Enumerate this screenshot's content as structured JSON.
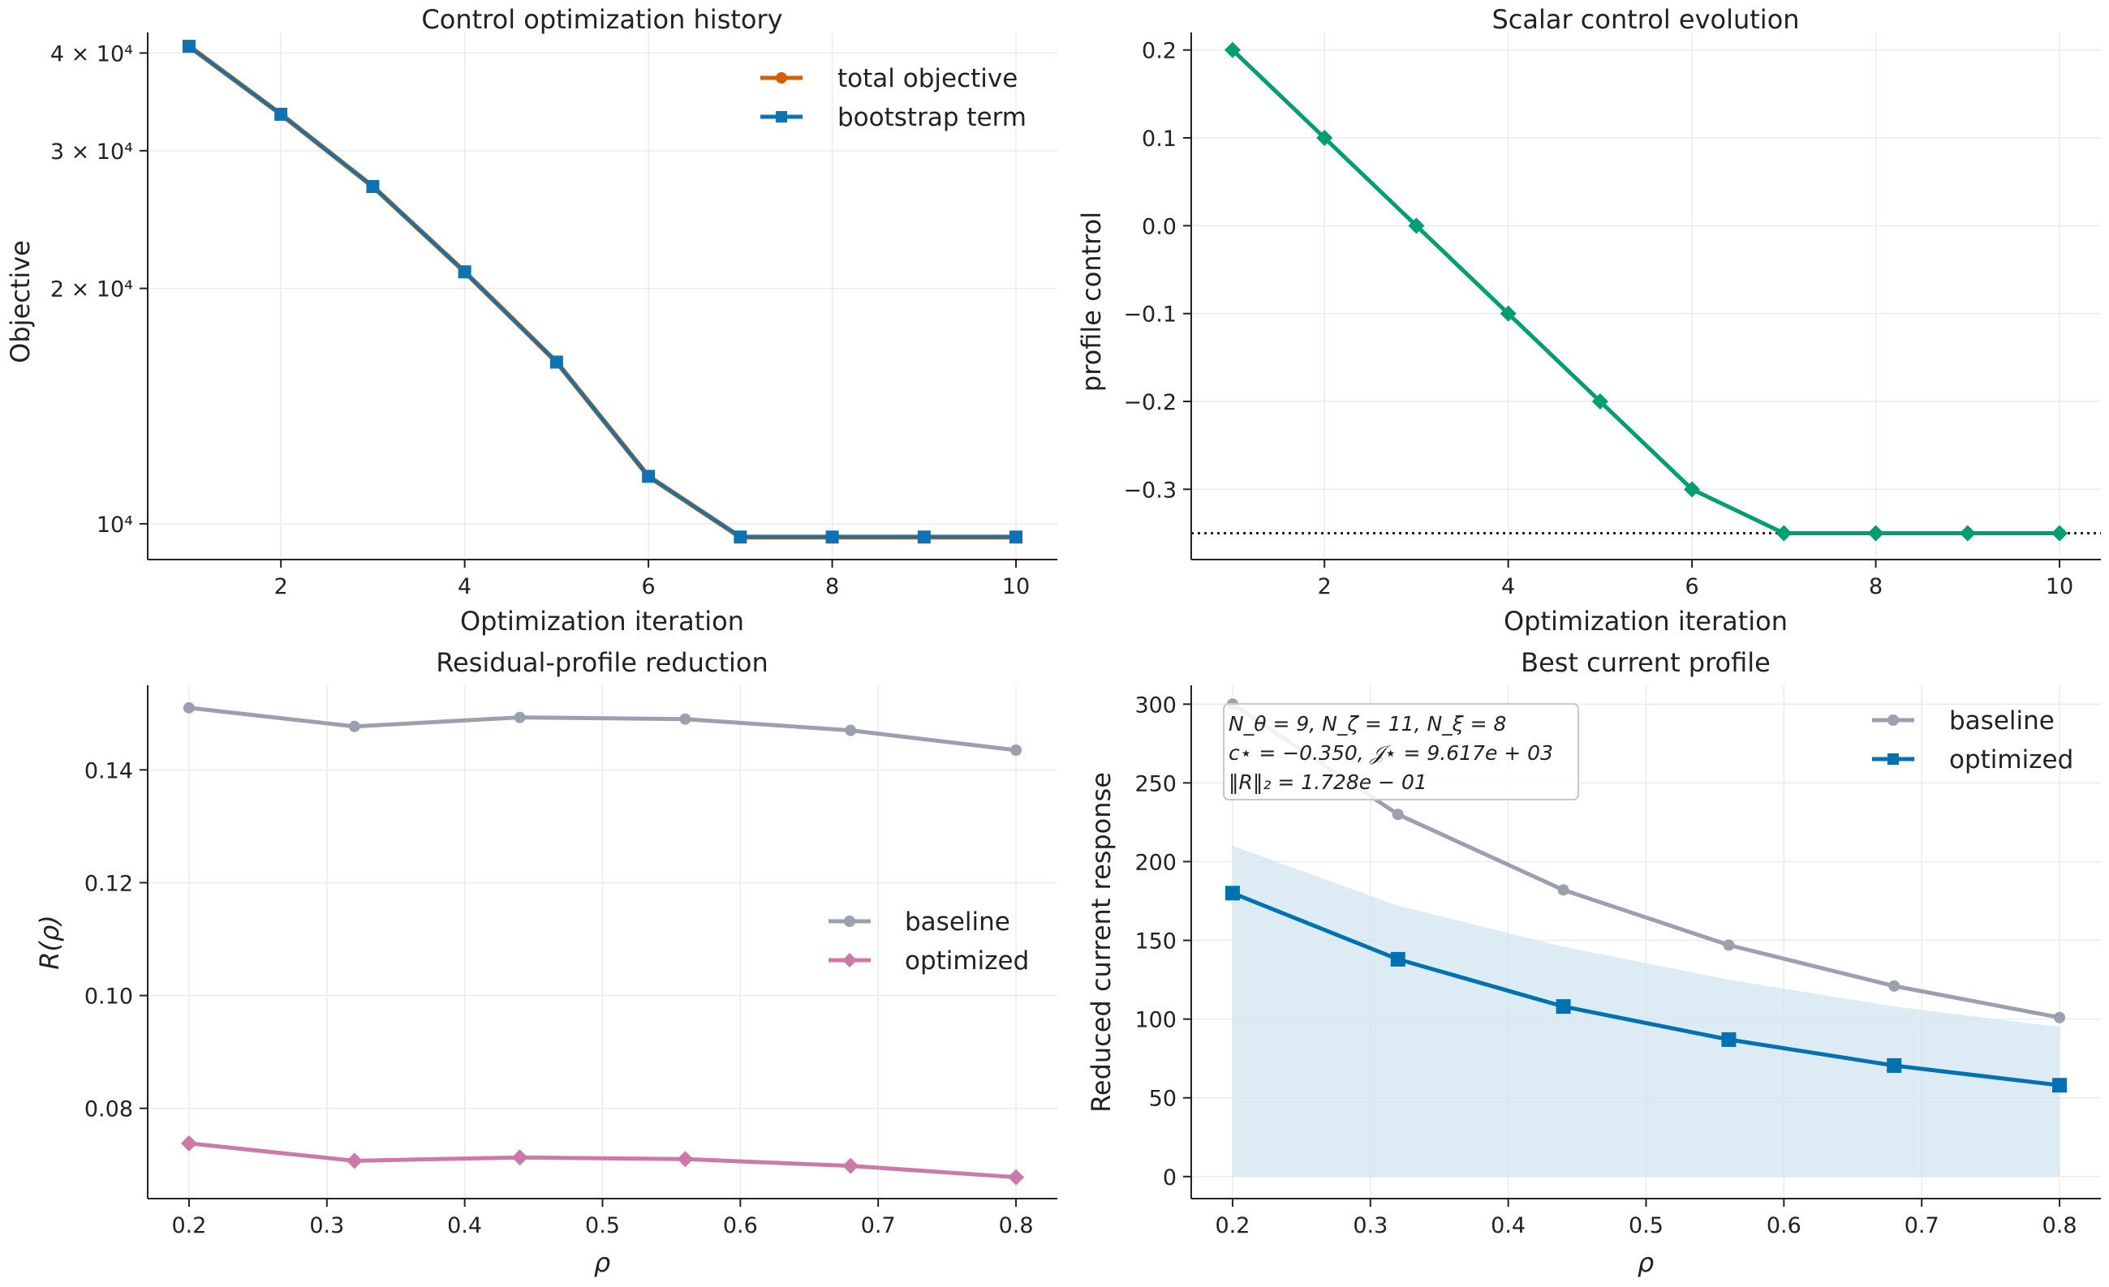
{
  "colors": {
    "total_objective": "#d55e00",
    "bootstrap_term": "#0e72b3",
    "scalar_control": "#009e73",
    "baseline": "#9aa0ad",
    "optimized_residual": "#cc79a7",
    "optimized_current": "#0072b2",
    "band_fill": "#cfe3f1"
  },
  "chart_data": [
    {
      "id": "p1",
      "type": "line",
      "title": "Control optimization history",
      "xlabel": "Optimization iteration",
      "ylabel": "Objective",
      "yscale": "log",
      "xlim": [
        0.55,
        10.45
      ],
      "ylim": [
        9000,
        42500
      ],
      "xticks": [
        2,
        4,
        6,
        8,
        10
      ],
      "xtick_labels": [
        "2",
        "4",
        "6",
        "8",
        "10"
      ],
      "yticks": [
        10000,
        20000,
        30000,
        40000
      ],
      "ytick_labels": [
        "10⁴",
        "2 × 10⁴",
        "3 × 10⁴",
        "4 × 10⁴"
      ],
      "grid": true,
      "legend": "upper right",
      "x": [
        1,
        2,
        3,
        4,
        5,
        6,
        7,
        8,
        9,
        10
      ],
      "series": [
        {
          "name": "total objective",
          "marker": "circle",
          "values": [
            40800,
            33400,
            27000,
            21000,
            16100,
            11500,
            9617,
            9617,
            9617,
            9617
          ]
        },
        {
          "name": "bootstrap term",
          "marker": "square",
          "values": [
            40800,
            33400,
            27000,
            21000,
            16100,
            11500,
            9617,
            9617,
            9617,
            9617
          ]
        }
      ]
    },
    {
      "id": "p2",
      "type": "line",
      "title": "Scalar control evolution",
      "xlabel": "Optimization iteration",
      "ylabel": "profile control",
      "xlim": [
        0.55,
        10.45
      ],
      "ylim": [
        -0.38,
        0.22
      ],
      "xticks": [
        2,
        4,
        6,
        8,
        10
      ],
      "xtick_labels": [
        "2",
        "4",
        "6",
        "8",
        "10"
      ],
      "yticks": [
        -0.3,
        -0.2,
        -0.1,
        0.0,
        0.1,
        0.2
      ],
      "ytick_labels": [
        "−0.3",
        "−0.2",
        "−0.1",
        "0.0",
        "0.1",
        "0.2"
      ],
      "grid": true,
      "reference_line_y": -0.35,
      "x": [
        1,
        2,
        3,
        4,
        5,
        6,
        7,
        8,
        9,
        10
      ],
      "series": [
        {
          "name": "",
          "marker": "diamond",
          "values": [
            0.2,
            0.1,
            0.0,
            -0.1,
            -0.2,
            -0.3,
            -0.35,
            -0.35,
            -0.35,
            -0.35
          ]
        }
      ]
    },
    {
      "id": "p3",
      "type": "line",
      "title": "Residual-profile reduction",
      "xlabel": "ρ",
      "ylabel": "R(ρ)",
      "xlim": [
        0.17,
        0.83
      ],
      "ylim": [
        0.064,
        0.155
      ],
      "xticks": [
        0.2,
        0.3,
        0.4,
        0.5,
        0.6,
        0.7,
        0.8
      ],
      "xtick_labels": [
        "0.2",
        "0.3",
        "0.4",
        "0.5",
        "0.6",
        "0.7",
        "0.8"
      ],
      "yticks": [
        0.08,
        0.1,
        0.12,
        0.14
      ],
      "ytick_labels": [
        "0.08",
        "0.10",
        "0.12",
        "0.14"
      ],
      "grid": true,
      "legend": "center right",
      "x": [
        0.2,
        0.32,
        0.44,
        0.56,
        0.68,
        0.8
      ],
      "series": [
        {
          "name": "baseline",
          "marker": "circle",
          "values": [
            0.151,
            0.1477,
            0.1493,
            0.149,
            0.147,
            0.1435
          ]
        },
        {
          "name": "optimized",
          "marker": "diamond",
          "values": [
            0.0738,
            0.0707,
            0.0713,
            0.071,
            0.0698,
            0.0678
          ]
        }
      ]
    },
    {
      "id": "p4",
      "type": "line",
      "title": "Best current profile",
      "xlabel": "ρ",
      "ylabel": "Reduced current response",
      "xlim": [
        0.17,
        0.83
      ],
      "ylim": [
        -14,
        312
      ],
      "xticks": [
        0.2,
        0.3,
        0.4,
        0.5,
        0.6,
        0.7,
        0.8
      ],
      "xtick_labels": [
        "0.2",
        "0.3",
        "0.4",
        "0.5",
        "0.6",
        "0.7",
        "0.8"
      ],
      "yticks": [
        0,
        50,
        100,
        150,
        200,
        250,
        300
      ],
      "ytick_labels": [
        "0",
        "50",
        "100",
        "150",
        "200",
        "250",
        "300"
      ],
      "grid": true,
      "legend": "upper right",
      "x": [
        0.2,
        0.32,
        0.44,
        0.56,
        0.68,
        0.8
      ],
      "series": [
        {
          "name": "baseline",
          "marker": "circle",
          "values": [
            300,
            230,
            182,
            147,
            121,
            101
          ]
        },
        {
          "name": "optimized",
          "marker": "square",
          "values": [
            180,
            138,
            108,
            87,
            70.5,
            58
          ]
        }
      ],
      "band": {
        "x": [
          0.2,
          0.32,
          0.44,
          0.56,
          0.68,
          0.8
        ],
        "lower": [
          0,
          0,
          0,
          0,
          0,
          0
        ],
        "upper": [
          210,
          172,
          146,
          125,
          108,
          95
        ]
      },
      "annotation": [
        "N_θ = 9, N_ζ = 11, N_ξ = 8",
        "c⋆ = −0.350, 𝒥⋆ = 9.617e + 03",
        "‖R‖₂ = 1.728e − 01"
      ]
    }
  ]
}
